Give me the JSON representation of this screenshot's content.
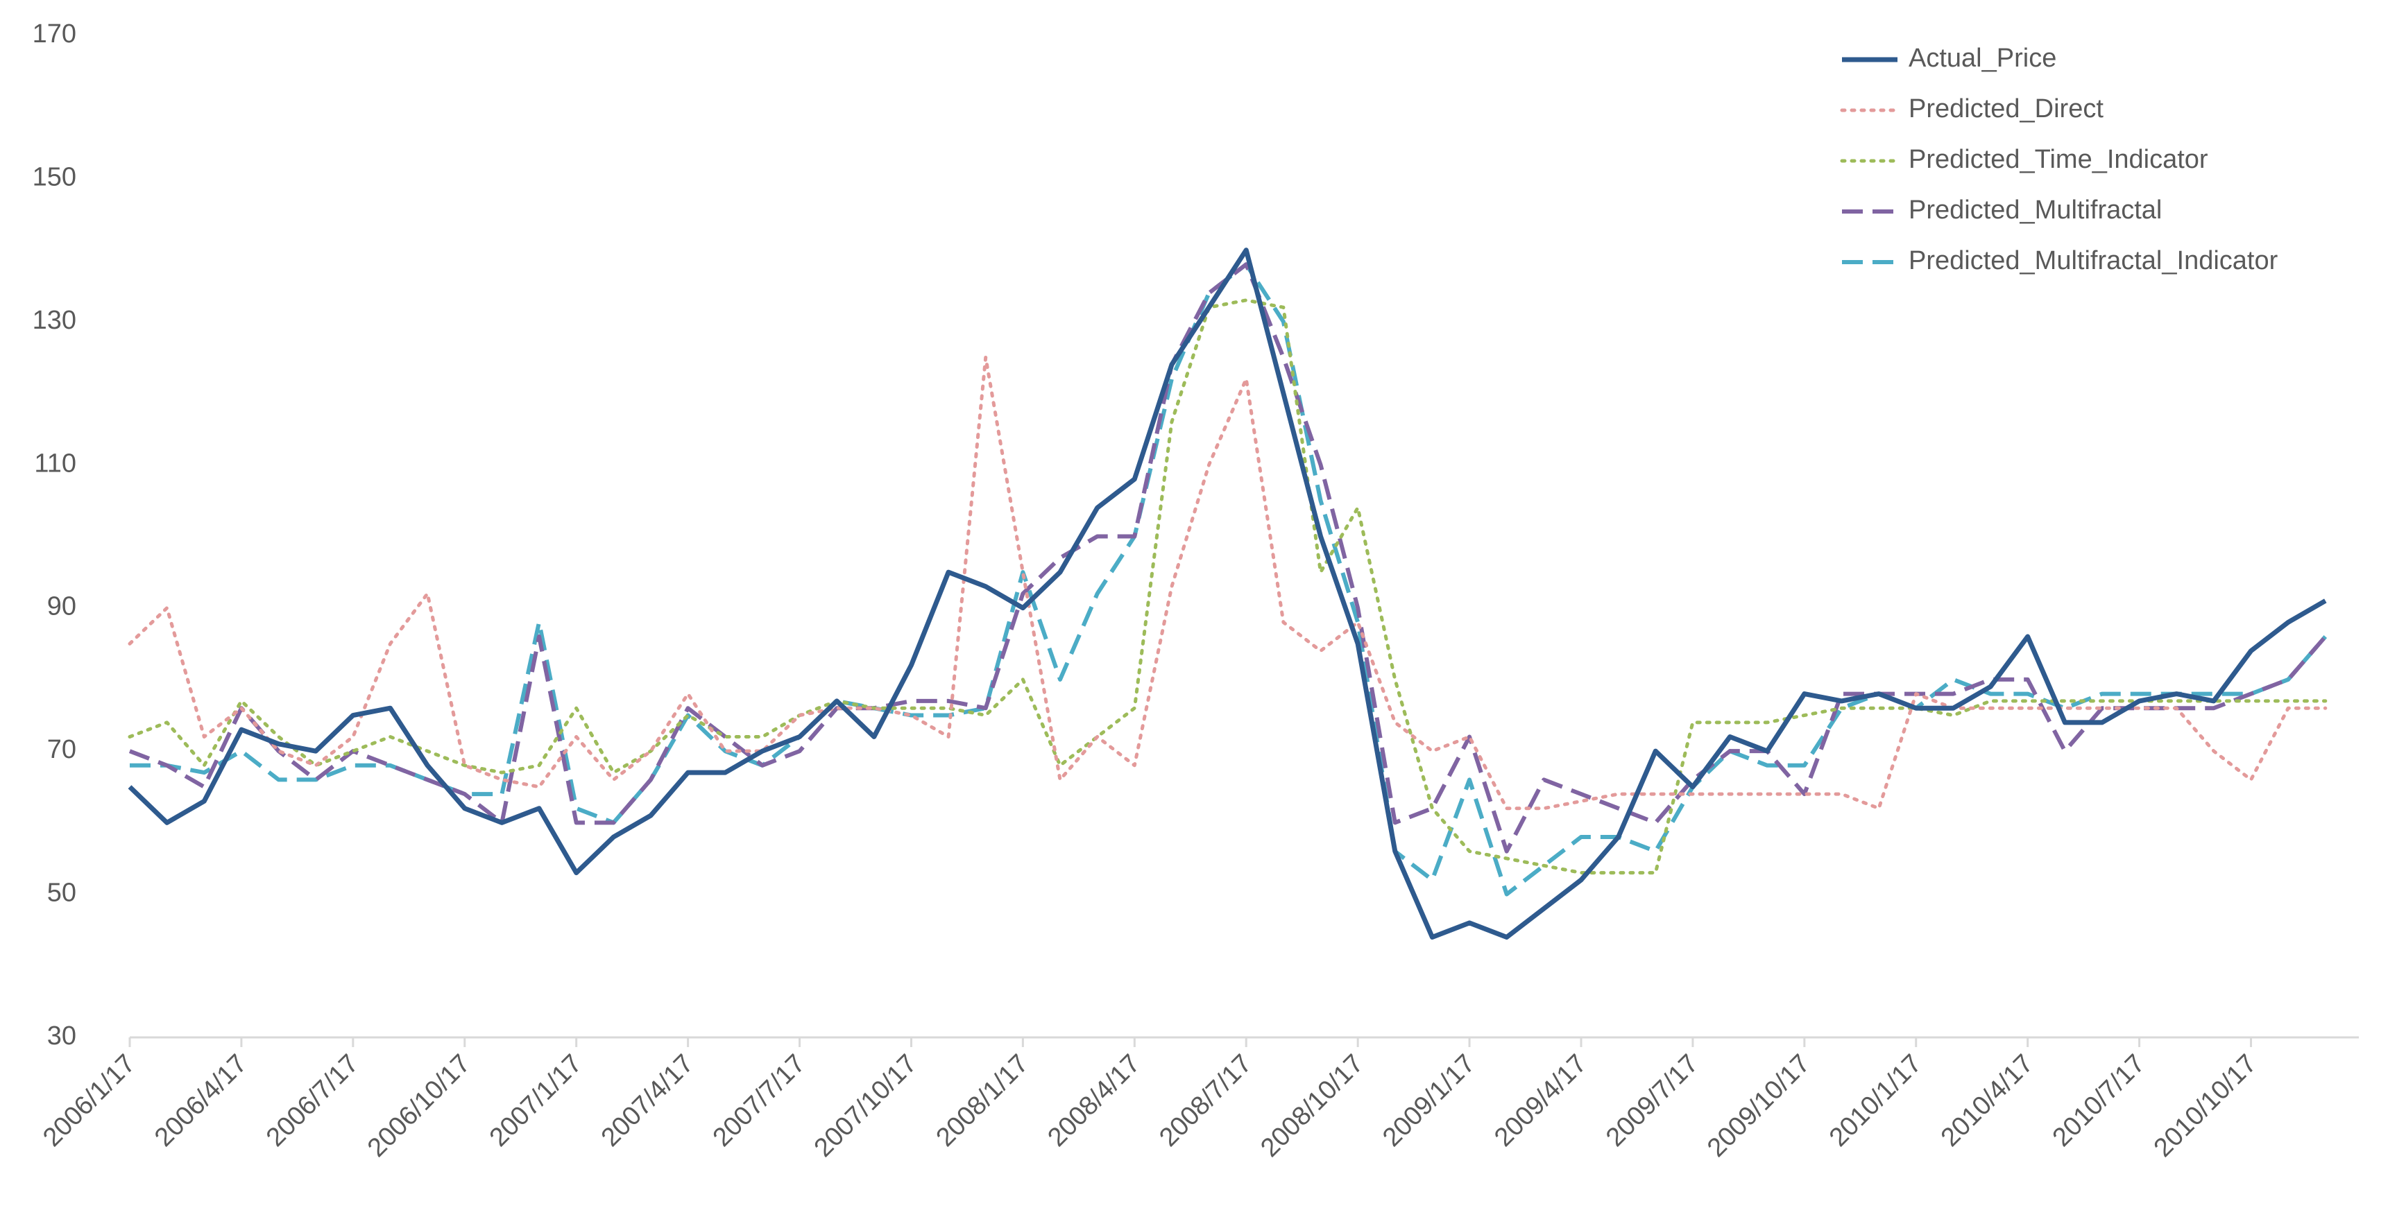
{
  "chart_data": {
    "type": "line",
    "categories": [
      "2006/1/17",
      null,
      null,
      "2006/4/17",
      null,
      null,
      "2006/7/17",
      null,
      null,
      "2006/10/17",
      null,
      null,
      "2007/1/17",
      null,
      null,
      "2007/4/17",
      null,
      null,
      "2007/7/17",
      null,
      null,
      "2007/10/17",
      null,
      null,
      "2008/1/17",
      null,
      null,
      "2008/4/17",
      null,
      null,
      "2008/7/17",
      null,
      null,
      "2008/10/17",
      null,
      null,
      "2009/1/17",
      null,
      null,
      "2009/4/17",
      null,
      null,
      "2009/7/17",
      null,
      null,
      "2009/10/17",
      null,
      null,
      "2010/1/17",
      null,
      null,
      "2010/4/17",
      null,
      null,
      "2010/7/17",
      null,
      null,
      "2010/10/17",
      null,
      null
    ],
    "series": [
      {
        "name": "Actual_Price",
        "color": "#2e5a8e",
        "style": "solid",
        "values": [
          65,
          60,
          63,
          73,
          71,
          70,
          75,
          76,
          68,
          62,
          60,
          62,
          53,
          58,
          61,
          67,
          67,
          70,
          72,
          77,
          72,
          82,
          95,
          93,
          90,
          95,
          104,
          108,
          124,
          132,
          140,
          120,
          100,
          85,
          56,
          44,
          46,
          44,
          48,
          52,
          58,
          70,
          65,
          72,
          70,
          78,
          77,
          78,
          76,
          76,
          79,
          86,
          74,
          74,
          77,
          78,
          77,
          84,
          88,
          91
        ]
      },
      {
        "name": "Predicted_Direct",
        "color": "#e39a9a",
        "style": "dotted",
        "values": [
          85,
          90,
          72,
          76,
          70,
          68,
          72,
          85,
          92,
          68,
          66,
          65,
          72,
          66,
          70,
          78,
          70,
          70,
          75,
          76,
          76,
          75,
          72,
          125,
          95,
          66,
          72,
          68,
          93,
          110,
          122,
          88,
          84,
          88,
          74,
          70,
          72,
          62,
          62,
          63,
          64,
          64,
          64,
          64,
          64,
          64,
          64,
          62,
          78,
          76,
          76,
          76,
          76,
          76,
          76,
          76,
          70,
          66,
          76,
          76
        ]
      },
      {
        "name": "Predicted_Time_Indicator",
        "color": "#9dbb59",
        "style": "dotted",
        "values": [
          72,
          74,
          68,
          77,
          72,
          68,
          70,
          72,
          70,
          68,
          67,
          68,
          76,
          67,
          70,
          75,
          72,
          72,
          75,
          77,
          76,
          76,
          76,
          75,
          80,
          68,
          72,
          76,
          116,
          132,
          133,
          132,
          95,
          104,
          80,
          62,
          56,
          55,
          54,
          53,
          53,
          53,
          74,
          74,
          74,
          75,
          76,
          76,
          76,
          75,
          77,
          77,
          77,
          77,
          77,
          77,
          77,
          77,
          77,
          77
        ]
      },
      {
        "name": "Predicted_Multifractal",
        "color": "#8064a2",
        "style": "dashed",
        "values": [
          70,
          68,
          65,
          76,
          70,
          66,
          70,
          68,
          66,
          64,
          60,
          86,
          60,
          60,
          66,
          76,
          72,
          68,
          70,
          76,
          76,
          77,
          77,
          76,
          92,
          97,
          100,
          100,
          124,
          134,
          138,
          125,
          110,
          90,
          60,
          62,
          72,
          56,
          66,
          64,
          62,
          60,
          66,
          70,
          70,
          64,
          78,
          78,
          78,
          78,
          80,
          80,
          70,
          76,
          76,
          76,
          76,
          78,
          80,
          86
        ]
      },
      {
        "name": "Predicted_Multifractal_Indicator",
        "color": "#4bacc6",
        "style": "dashed",
        "values": [
          68,
          68,
          67,
          70,
          66,
          66,
          68,
          68,
          66,
          64,
          64,
          88,
          62,
          60,
          66,
          75,
          70,
          68,
          72,
          77,
          76,
          75,
          75,
          76,
          95,
          80,
          92,
          100,
          122,
          134,
          138,
          130,
          105,
          88,
          56,
          52,
          66,
          50,
          54,
          58,
          58,
          56,
          65,
          70,
          68,
          68,
          76,
          78,
          76,
          80,
          78,
          78,
          76,
          78,
          78,
          78,
          78,
          78,
          80,
          86
        ]
      }
    ],
    "ylim": [
      30,
      170
    ],
    "yticks": [
      30,
      50,
      70,
      90,
      110,
      130,
      150,
      170
    ],
    "grid": false,
    "legend": "top-right"
  }
}
